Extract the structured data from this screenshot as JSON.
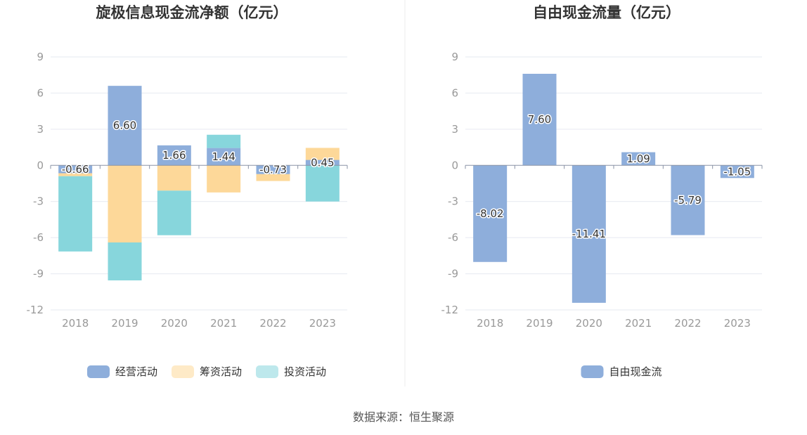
{
  "source_text": "数据来源：恒生聚源",
  "chart_data": [
    {
      "type": "bar",
      "stacked": true,
      "title": "旋极信息现金流净额（亿元）",
      "categories": [
        "2018",
        "2019",
        "2020",
        "2021",
        "2022",
        "2023"
      ],
      "ylim": [
        -12,
        9
      ],
      "yticks": [
        9,
        6,
        3,
        0,
        -3,
        -6,
        -9,
        -12
      ],
      "grid": true,
      "legend_position": "bottom",
      "series": [
        {
          "name": "经营活动",
          "color": "#8eaedb",
          "values": [
            -0.66,
            6.6,
            1.66,
            1.44,
            -0.73,
            0.45
          ],
          "labels": [
            "-0.66",
            "6.60",
            "1.66",
            "1.44",
            "-0.73",
            "0.45"
          ]
        },
        {
          "name": "筹资活动",
          "color": "#fdd899",
          "values": [
            -0.24,
            -6.4,
            -2.1,
            -2.25,
            -0.57,
            1.0
          ]
        },
        {
          "name": "投资活动",
          "color": "#87d6dc",
          "values": [
            -6.25,
            -3.15,
            -3.7,
            1.1,
            0.0,
            -3.0
          ]
        }
      ]
    },
    {
      "type": "bar",
      "title": "自由现金流量（亿元）",
      "categories": [
        "2018",
        "2019",
        "2020",
        "2021",
        "2022",
        "2023"
      ],
      "ylim": [
        -12,
        9
      ],
      "yticks": [
        9,
        6,
        3,
        0,
        -3,
        -6,
        -9,
        -12
      ],
      "grid": true,
      "legend_position": "bottom",
      "series": [
        {
          "name": "自由现金流",
          "color": "#8eaedb",
          "values": [
            -8.02,
            7.6,
            -11.41,
            1.09,
            -5.79,
            -1.05
          ],
          "labels": [
            "-8.02",
            "7.60",
            "-11.41",
            "1.09",
            "-5.79",
            "-1.05"
          ]
        }
      ]
    }
  ]
}
